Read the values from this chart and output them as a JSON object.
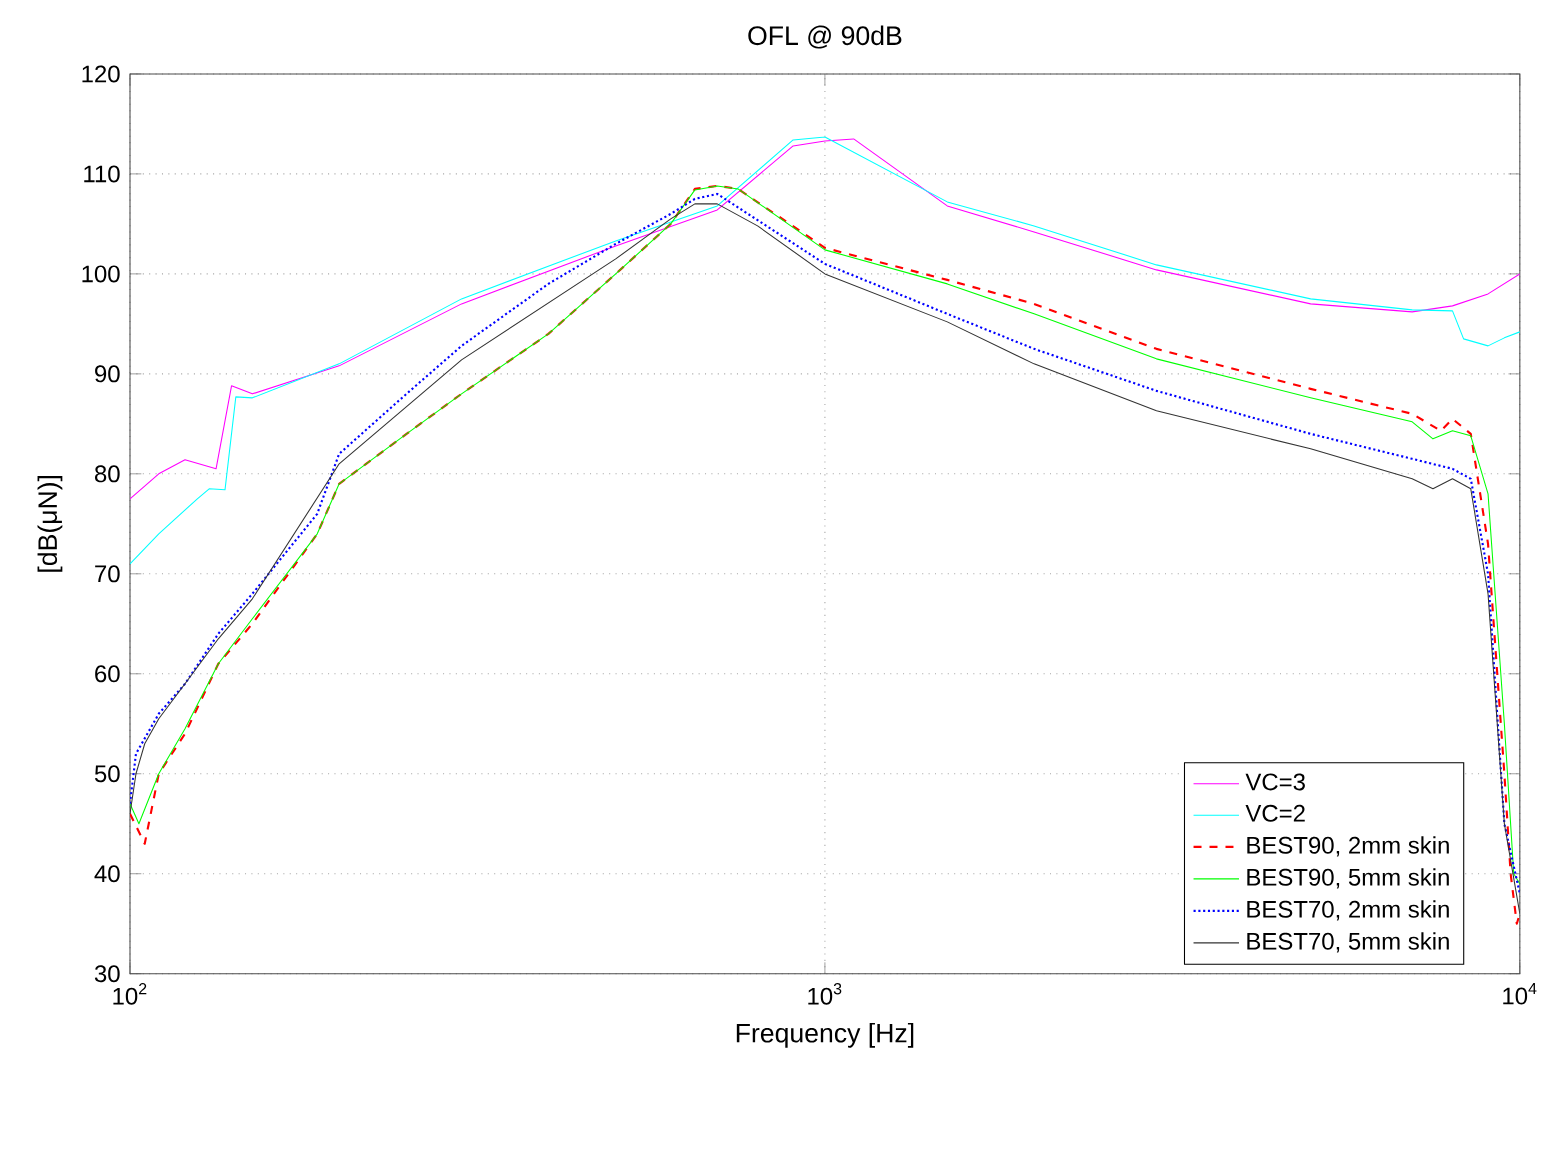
{
  "chart_data": {
    "type": "line",
    "title": "OFL @ 90dB",
    "xlabel": "Frequency [Hz]",
    "ylabel": "[dB(μN)]",
    "log": "x",
    "grid": true,
    "legend": "bottom right",
    "marker": "none",
    "xlim": [
      100,
      10000
    ],
    "xticks": [
      {
        "value": 100,
        "label": "10$^{2}$"
      },
      {
        "value": 1000,
        "label": "10$^{3}$"
      },
      {
        "value": 10000,
        "label": "10$^{4}$"
      }
    ],
    "ylim": [
      30,
      120
    ],
    "yticks": [
      30,
      40,
      50,
      60,
      70,
      80,
      90,
      100,
      110,
      120
    ],
    "series": [
      {
        "name": "VC=3",
        "color": "#ff00ff",
        "line_style": "solid",
        "x": [
          100,
          110,
          120,
          133,
          140,
          150,
          200,
          300,
          500,
          700,
          900,
          1000,
          1100,
          1500,
          2000,
          3000,
          5000,
          7000,
          8000,
          9000,
          10000
        ],
        "values": [
          77.5,
          80,
          81.4,
          80.5,
          88.8,
          88,
          90.8,
          97,
          102.8,
          106.4,
          112.8,
          113.3,
          113.5,
          106.8,
          104.2,
          100.4,
          97,
          96.2,
          96.8,
          98,
          100
        ]
      },
      {
        "name": "VC=2",
        "color": "#00ffff",
        "line_style": "solid",
        "x": [
          100,
          110,
          125,
          130,
          137,
          142,
          150,
          200,
          300,
          500,
          700,
          900,
          1000,
          1500,
          2000,
          3000,
          5000,
          7000,
          8000,
          8300,
          9000,
          9500,
          10000
        ],
        "values": [
          71,
          74,
          77.5,
          78.5,
          78.4,
          87.7,
          87.6,
          91,
          97.5,
          103.3,
          106.8,
          113.4,
          113.7,
          107.2,
          104.8,
          100.9,
          97.5,
          96.4,
          96.3,
          93.5,
          92.8,
          93.6,
          94.2
        ]
      },
      {
        "name": "BEST90, 2mm skin",
        "color": "#ff0000",
        "line_style": "dashed",
        "x": [
          100,
          105,
          110,
          120,
          134,
          150,
          186,
          200,
          250,
          300,
          400,
          500,
          600,
          650,
          700,
          750,
          1000,
          1500,
          2000,
          3000,
          5000,
          7000,
          7700,
          8000,
          8500,
          9000,
          9500,
          9700,
          9900,
          10000
        ],
        "values": [
          46,
          43,
          50,
          54,
          61,
          65,
          74,
          79,
          84,
          88,
          94,
          100,
          105,
          108.5,
          108.8,
          108.5,
          102.6,
          99.4,
          97,
          92.5,
          88.5,
          86,
          84.3,
          85.5,
          84,
          73,
          50,
          40,
          35,
          36
        ]
      },
      {
        "name": "BEST90, 5mm skin",
        "color": "#00ff00",
        "line_style": "solid",
        "x": [
          100,
          103,
          110,
          120,
          134,
          150,
          186,
          200,
          250,
          300,
          400,
          500,
          600,
          650,
          700,
          750,
          1000,
          1500,
          2000,
          3000,
          5000,
          7000,
          7500,
          8000,
          8500,
          9000,
          9500,
          9800,
          10000
        ],
        "values": [
          47,
          45,
          50,
          54.5,
          61,
          65.5,
          74,
          79,
          84,
          88,
          94,
          100,
          105,
          108.4,
          108.8,
          108.5,
          102.4,
          99,
          96,
          91.5,
          87.6,
          85.2,
          83.5,
          84.3,
          83.8,
          78,
          55,
          40,
          39
        ]
      },
      {
        "name": "BEST70, 2mm skin",
        "color": "#0000ff",
        "line_style": "dotted",
        "x": [
          100,
          102,
          110,
          120,
          134,
          150,
          186,
          200,
          250,
          300,
          400,
          500,
          600,
          650,
          700,
          1000,
          1500,
          2000,
          3000,
          5000,
          7000,
          8000,
          8500,
          9000,
          9500,
          10000
        ],
        "values": [
          47,
          52,
          56,
          59,
          64,
          68,
          76,
          82,
          88,
          92.8,
          99,
          103,
          106,
          107.5,
          108,
          101,
          96,
          92.5,
          88.3,
          84,
          81.5,
          80.5,
          79.5,
          70,
          45,
          38
        ]
      },
      {
        "name": "BEST70, 5mm skin",
        "color": "#333333",
        "line_style": "solid",
        "x": [
          100,
          102,
          105,
          110,
          120,
          134,
          150,
          200,
          300,
          500,
          600,
          650,
          700,
          800,
          1000,
          1500,
          2000,
          3000,
          5000,
          7000,
          7500,
          8000,
          8500,
          9000,
          9500,
          10000
        ],
        "values": [
          46,
          50,
          53,
          55.5,
          59,
          63.5,
          67.5,
          81,
          91.4,
          101.5,
          105.5,
          107,
          107,
          104.8,
          100,
          95.2,
          91,
          86.3,
          82.5,
          79.5,
          78.5,
          79.5,
          78.5,
          68,
          45,
          36
        ]
      }
    ]
  }
}
